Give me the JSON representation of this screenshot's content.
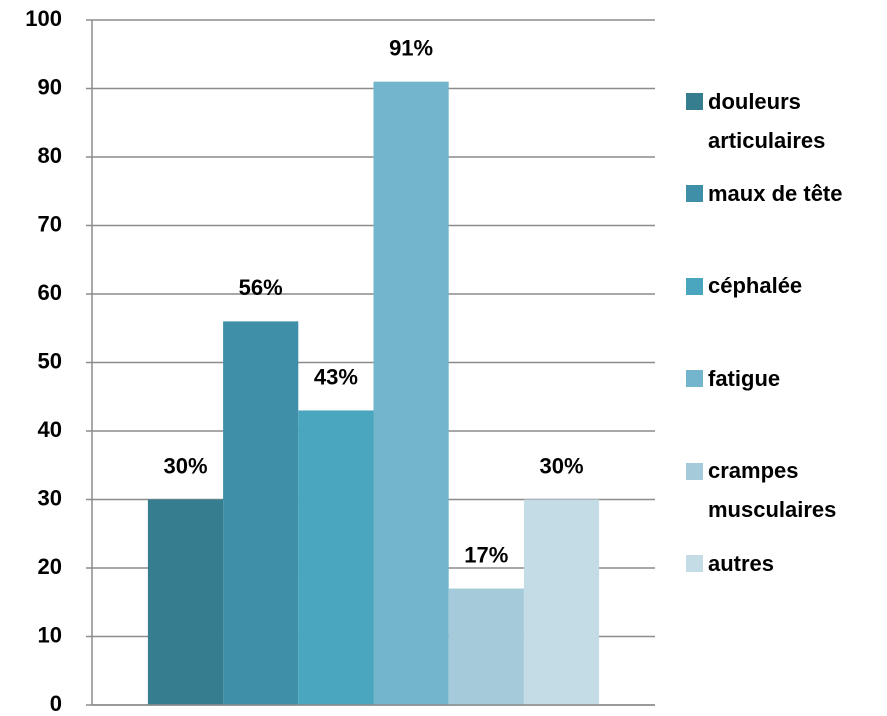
{
  "chart_data": {
    "type": "bar",
    "categories": [
      null
    ],
    "series": [
      {
        "name": "douleurs articulaires",
        "color": "#357d8f",
        "values": [
          30
        ],
        "value_labels": [
          "30%"
        ]
      },
      {
        "name": "maux de tête",
        "color": "#3f8fa8",
        "values": [
          56
        ],
        "value_labels": [
          "56%"
        ]
      },
      {
        "name": "céphalée",
        "color": "#4aa5be",
        "values": [
          43
        ],
        "value_labels": [
          "43%"
        ]
      },
      {
        "name": "fatigue",
        "color": "#72b5cc",
        "values": [
          91
        ],
        "value_labels": [
          "91%"
        ]
      },
      {
        "name": "crampes musculaires",
        "color": "#a5cbdb",
        "values": [
          17
        ],
        "value_labels": [
          "17%"
        ]
      },
      {
        "name": "autres",
        "color": "#c4dce6",
        "values": [
          30
        ],
        "value_labels": [
          "30%"
        ]
      }
    ],
    "ylim": [
      0,
      100
    ],
    "yticks": [
      0,
      10,
      20,
      30,
      40,
      50,
      60,
      70,
      80,
      90,
      100
    ],
    "grid": true,
    "legend": "right"
  }
}
